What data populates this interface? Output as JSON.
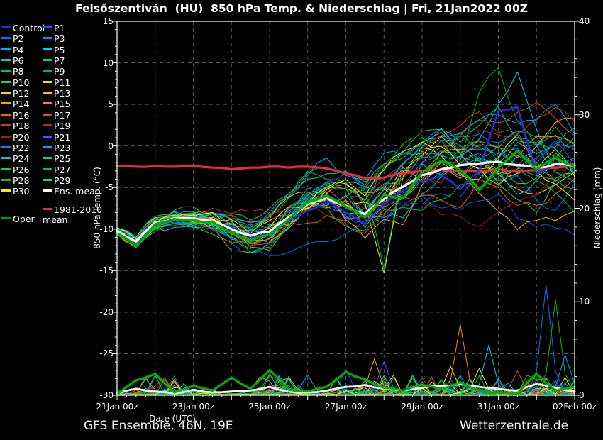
{
  "title": "Felsőszentiván  (HU)  850 hPa Temp. & Niederschlag | Fri, 21Jan2022 00Z",
  "footer": {
    "left": "GFS Ensemble, 46N, 19E",
    "right": "Wetterzentrale.de"
  },
  "axes": {
    "temp_label": "850 hPa Temp. (°C)",
    "precip_label": "Niederschlag (mm)",
    "x_label": "Date (UTC)",
    "temp_ticks": [
      15,
      10,
      5,
      0,
      -5,
      -10,
      -15,
      -20,
      -25,
      -30
    ],
    "precip_ticks": [
      40,
      30,
      20,
      10,
      0
    ],
    "date_ticks": [
      "21Jan 00z",
      "23Jan 00z",
      "25Jan 00z",
      "27Jan 00z",
      "29Jan 00z",
      "31Jan 00z",
      "02Feb 00z"
    ],
    "temp_range": [
      -30,
      15
    ],
    "precip_range": [
      0,
      40
    ],
    "hours_range": [
      0,
      288
    ]
  },
  "legend": {
    "ens_mean_label": "Ens. mean",
    "climate_mean_label_line1": "1981-2010",
    "climate_mean_label_line2": "mean",
    "oper_label": "Oper"
  },
  "chart_data": {
    "type": "line",
    "title": "GFS ensemble 850 hPa temperature and precipitation meteogram",
    "x_hours_step": 12,
    "x_hours": [
      0,
      12,
      24,
      36,
      48,
      60,
      72,
      84,
      96,
      108,
      120,
      132,
      144,
      156,
      168,
      180,
      192,
      204,
      216,
      228,
      240,
      252,
      264,
      276,
      288
    ],
    "grid": "dashed, every 24 h vertical, every 5 °C horizontal",
    "legend_position": "upper-left outside",
    "colors": {
      "background": "#000000",
      "frame": "#ffffff",
      "gridline": "#5a5a5a",
      "ens_mean": "#ffffff",
      "climate_mean": "#e23030",
      "oper": "#00b000",
      "control": "#2a2ad0"
    },
    "members": [
      {
        "name": "Control",
        "color": "#2a2ad0"
      },
      {
        "name": "P1",
        "color": "#1e50ff"
      },
      {
        "name": "P2",
        "color": "#0073ff"
      },
      {
        "name": "P3",
        "color": "#0090ff"
      },
      {
        "name": "P4",
        "color": "#00acff"
      },
      {
        "name": "P5",
        "color": "#00cdee"
      },
      {
        "name": "P6",
        "color": "#00d2b4"
      },
      {
        "name": "P7",
        "color": "#00cf85"
      },
      {
        "name": "P8",
        "color": "#00c353"
      },
      {
        "name": "P9",
        "color": "#00bf2a"
      },
      {
        "name": "P10",
        "color": "#2fd42f"
      },
      {
        "name": "P11",
        "color": "#eded00"
      },
      {
        "name": "P12",
        "color": "#ffd400"
      },
      {
        "name": "P13",
        "color": "#ffbb00"
      },
      {
        "name": "P14",
        "color": "#ffa200"
      },
      {
        "name": "P15",
        "color": "#ff8800"
      },
      {
        "name": "P16",
        "color": "#ef6c00"
      },
      {
        "name": "P17",
        "color": "#dd5400"
      },
      {
        "name": "P18",
        "color": "#cf3a10"
      },
      {
        "name": "P19",
        "color": "#bf2a16"
      },
      {
        "name": "P20",
        "color": "#ad1a1a"
      },
      {
        "name": "P21",
        "color": "#2562ff"
      },
      {
        "name": "P22",
        "color": "#0080ff"
      },
      {
        "name": "P23",
        "color": "#00a5ff"
      },
      {
        "name": "P24",
        "color": "#00c8e2"
      },
      {
        "name": "P25",
        "color": "#00cfa0"
      },
      {
        "name": "P26",
        "color": "#00cc6e"
      },
      {
        "name": "P27",
        "color": "#00c343"
      },
      {
        "name": "P28",
        "color": "#0cc42a"
      },
      {
        "name": "P29",
        "color": "#38d038"
      },
      {
        "name": "P30",
        "color": "#efef00"
      }
    ],
    "ens_mean_temp": [
      -10.2,
      -11.5,
      -9.2,
      -8.7,
      -8.7,
      -8.9,
      -10.0,
      -10.8,
      -10.3,
      -8.6,
      -7.0,
      -6.3,
      -7.2,
      -8.2,
      -6.4,
      -4.9,
      -3.5,
      -2.8,
      -2.3,
      -2.1,
      -1.9,
      -2.3,
      -2.6,
      -2.2,
      -2.4
    ],
    "climate_mean_temp": [
      -2.4,
      -2.5,
      -2.4,
      -2.5,
      -2.4,
      -2.6,
      -2.8,
      -2.6,
      -2.5,
      -2.6,
      -2.5,
      -2.7,
      -3.3,
      -3.9,
      -3.8,
      -3.3,
      -3.0,
      -2.9,
      -3.0,
      -3.1,
      -2.8,
      -3.1,
      -2.9,
      -2.6,
      -2.3
    ],
    "oper_temp": [
      -10.5,
      -12.0,
      -9.4,
      -8.8,
      -8.9,
      -9.1,
      -10.4,
      -11.4,
      -10.7,
      -8.8,
      -6.8,
      -6.0,
      -7.3,
      -8.6,
      -5.8,
      -6.3,
      -3.2,
      -1.8,
      -2.9,
      -5.3,
      -2.6,
      -0.6,
      -2.8,
      -1.4,
      -2.4
    ],
    "control_temp": [
      -10.4,
      -11.7,
      -9.5,
      -8.8,
      -8.8,
      -9.0,
      -9.8,
      -11.0,
      -10.5,
      -9.0,
      -7.8,
      -6.6,
      -8.0,
      -9.4,
      -7.0,
      -5.4,
      -4.2,
      -3.6,
      -5.2,
      -3.0,
      4.2,
      4.7,
      -3.4,
      -2.2,
      -2.5
    ],
    "member_spread_temp": [
      0.7,
      0.9,
      0.9,
      1.0,
      1.1,
      1.4,
      1.8,
      2.1,
      2.4,
      2.8,
      3.2,
      3.4,
      3.8,
      4.0,
      4.3,
      4.4,
      4.5,
      4.8,
      5.0,
      5.2,
      5.4,
      5.4,
      5.3,
      5.2,
      5.2
    ],
    "temp_overrides": [
      {
        "member": 9,
        "k": 19,
        "v": 6.5
      },
      {
        "member": 9,
        "k": 20,
        "v": 9.4
      },
      {
        "member": 9,
        "k": 21,
        "v": 3.0
      },
      {
        "member": 5,
        "k": 20,
        "v": 5.0
      },
      {
        "member": 5,
        "k": 21,
        "v": 8.9
      },
      {
        "member": 5,
        "k": 22,
        "v": 2.0
      },
      {
        "member": 11,
        "k": 14,
        "v": -15.3
      },
      {
        "member": 27,
        "k": 14,
        "v": -14.8
      }
    ],
    "ens_mean_precip": [
      0.2,
      0.7,
      0.4,
      0.2,
      0.6,
      0.3,
      0.4,
      0.5,
      0.9,
      0.4,
      0.3,
      0.5,
      0.9,
      1.1,
      0.7,
      0.5,
      0.8,
      1.0,
      1.2,
      0.9,
      0.7,
      0.5,
      1.2,
      0.8,
      0.4
    ],
    "oper_precip": [
      0.1,
      1.6,
      2.3,
      0.3,
      1.0,
      0.5,
      1.9,
      0.7,
      2.7,
      0.6,
      0.4,
      0.9,
      2.5,
      1.7,
      0.8,
      0.5,
      1.1,
      0.7,
      1.4,
      0.5,
      0.3,
      0.2,
      2.3,
      0.5,
      0.9
    ],
    "precip_events": [
      {
        "member": 2,
        "t": 270,
        "mm": 11.8
      },
      {
        "member": 9,
        "t": 276,
        "mm": 10.2
      },
      {
        "member": 15,
        "t": 216,
        "mm": 7.6
      },
      {
        "member": 5,
        "t": 234,
        "mm": 5.4
      },
      {
        "member": 23,
        "t": 282,
        "mm": 4.3
      },
      {
        "member": 14,
        "t": 162,
        "mm": 3.9
      },
      {
        "member": 21,
        "t": 168,
        "mm": 3.6
      },
      {
        "member": 11,
        "t": 210,
        "mm": 3.1
      },
      {
        "member": 1,
        "t": 144,
        "mm": 2.8
      },
      {
        "member": 30,
        "t": 228,
        "mm": 2.9
      },
      {
        "member": 7,
        "t": 96,
        "mm": 2.3
      },
      {
        "member": 19,
        "t": 30,
        "mm": 1.9
      },
      {
        "member": 17,
        "t": 252,
        "mm": 2.6
      },
      {
        "member": 4,
        "t": 120,
        "mm": 2.2
      }
    ],
    "wet_windows": [
      [
        18,
        42
      ],
      [
        90,
        114
      ],
      [
        138,
        174
      ],
      [
        186,
        246
      ],
      [
        258,
        288
      ]
    ],
    "seed": 42
  }
}
